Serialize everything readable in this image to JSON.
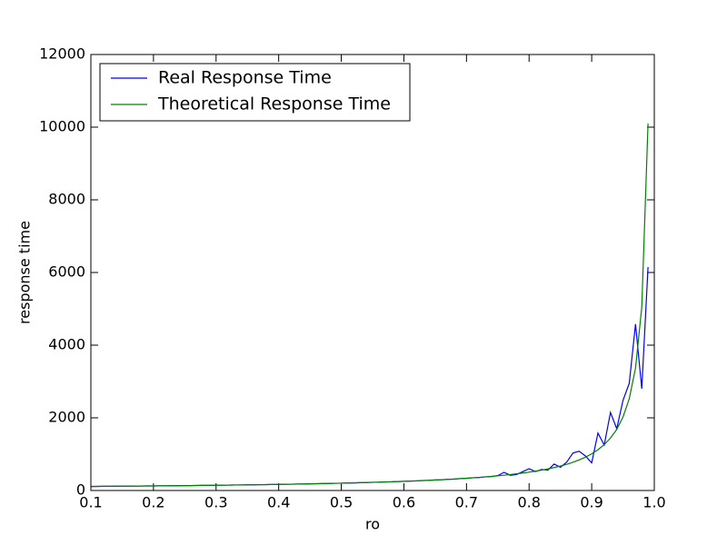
{
  "chart_data": {
    "type": "line",
    "xlabel": "ro",
    "ylabel": "response time",
    "x": [
      0.1,
      0.11,
      0.12,
      0.13,
      0.14,
      0.15,
      0.16,
      0.17,
      0.18,
      0.19,
      0.2,
      0.21,
      0.22,
      0.23,
      0.24,
      0.25,
      0.26,
      0.27,
      0.28,
      0.29,
      0.3,
      0.31,
      0.32,
      0.33,
      0.34,
      0.35,
      0.36,
      0.37,
      0.38,
      0.39,
      0.4,
      0.41,
      0.42,
      0.43,
      0.44,
      0.45,
      0.46,
      0.47,
      0.48,
      0.49,
      0.5,
      0.51,
      0.52,
      0.53,
      0.54,
      0.55,
      0.56,
      0.57,
      0.58,
      0.59,
      0.6,
      0.61,
      0.62,
      0.63,
      0.64,
      0.65,
      0.66,
      0.67,
      0.68,
      0.69,
      0.7,
      0.71,
      0.72,
      0.73,
      0.74,
      0.75,
      0.76,
      0.77,
      0.78,
      0.79,
      0.8,
      0.81,
      0.82,
      0.83,
      0.84,
      0.85,
      0.86,
      0.87,
      0.88,
      0.89,
      0.9,
      0.91,
      0.92,
      0.93,
      0.94,
      0.95,
      0.96,
      0.97,
      0.98,
      0.99
    ],
    "series": [
      {
        "name": "Real Response Time",
        "color": "#0000ff",
        "values": [
          110,
          112,
          116,
          115,
          118,
          120,
          119,
          123,
          122,
          126,
          125,
          129,
          128,
          132,
          131,
          136,
          135,
          139,
          141,
          140,
          145,
          147,
          148,
          152,
          151,
          156,
          157,
          161,
          162,
          167,
          167,
          172,
          173,
          178,
          179,
          185,
          186,
          192,
          193,
          199,
          201,
          207,
          209,
          216,
          219,
          226,
          228,
          236,
          239,
          247,
          252,
          260,
          264,
          275,
          279,
          291,
          295,
          308,
          313,
          328,
          335,
          351,
          356,
          377,
          384,
          410,
          500,
          420,
          440,
          520,
          600,
          520,
          580,
          560,
          730,
          640,
          780,
          1030,
          1080,
          950,
          760,
          1580,
          1250,
          2150,
          1700,
          2480,
          2950,
          4580,
          2800,
          6150
        ]
      },
      {
        "name": "Theoretical Response Time",
        "color": "#008000",
        "values": [
          112,
          113,
          115,
          116,
          117,
          119,
          120,
          122,
          123,
          125,
          126,
          128,
          129,
          131,
          133,
          135,
          136,
          138,
          140,
          142,
          144,
          146,
          149,
          151,
          153,
          155,
          158,
          160,
          163,
          166,
          168,
          171,
          174,
          177,
          180,
          184,
          187,
          191,
          194,
          198,
          202,
          206,
          210,
          215,
          220,
          224,
          230,
          235,
          240,
          246,
          253,
          259,
          266,
          273,
          281,
          289,
          297,
          306,
          316,
          326,
          337,
          348,
          361,
          374,
          388,
          404,
          421,
          439,
          459,
          481,
          505,
          532,
          561,
          594,
          631,
          673,
          721,
          777,
          842,
          918,
          1010,
          1122,
          1263,
          1443,
          1683,
          2020,
          2525,
          3367,
          5050,
          10100
        ]
      }
    ],
    "xlim": [
      0.1,
      1
    ],
    "ylim": [
      0,
      12000
    ],
    "xticks": [
      0.1,
      0.2,
      0.3,
      0.4,
      0.5,
      0.6,
      0.7,
      0.8,
      0.9,
      {
        "value": 1,
        "label": "1.0"
      }
    ],
    "yticks": [
      0,
      2000,
      4000,
      6000,
      8000,
      10000,
      12000
    ],
    "legend": "upper left"
  }
}
